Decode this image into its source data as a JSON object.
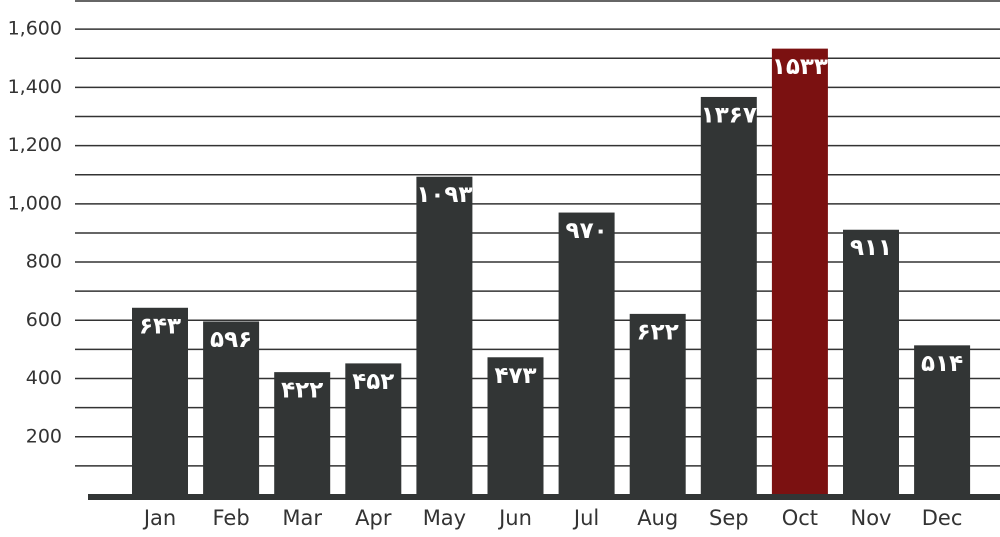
{
  "chart_data": {
    "type": "bar",
    "categories": [
      "Jan",
      "Feb",
      "Mar",
      "Apr",
      "May",
      "Jun",
      "Jul",
      "Aug",
      "Sep",
      "Oct",
      "Nov",
      "Dec"
    ],
    "values": [
      643,
      596,
      422,
      452,
      1093,
      473,
      970,
      622,
      1367,
      1533,
      911,
      514
    ],
    "value_labels": [
      "۶۴۳",
      "۵۹۶",
      "۴۲۲",
      "۴۵۲",
      "۱۰۹۳",
      "۴۷۳",
      "۹۷۰",
      "۶۲۲",
      "۱۳۶۷",
      "۱۵۳۳",
      "۹۱۱",
      "۵۱۴"
    ],
    "colors": [
      "#323535",
      "#323535",
      "#323535",
      "#323535",
      "#323535",
      "#323535",
      "#323535",
      "#323535",
      "#323535",
      "#7b1111",
      "#323535",
      "#323535"
    ],
    "ylim": [
      0,
      1700
    ],
    "yticks": [
      {
        "value": 200,
        "label": "200"
      },
      {
        "value": 400,
        "label": "400"
      },
      {
        "value": 600,
        "label": "600"
      },
      {
        "value": 800,
        "label": "800"
      },
      {
        "value": 1000,
        "label": "1,000"
      },
      {
        "value": 1200,
        "label": "1,200"
      },
      {
        "value": 1400,
        "label": "1,400"
      },
      {
        "value": 1600,
        "label": "1,600"
      }
    ],
    "minor_grid": [
      100,
      300,
      500,
      700,
      900,
      1100,
      1300,
      1500,
      1700
    ],
    "grid": true
  }
}
